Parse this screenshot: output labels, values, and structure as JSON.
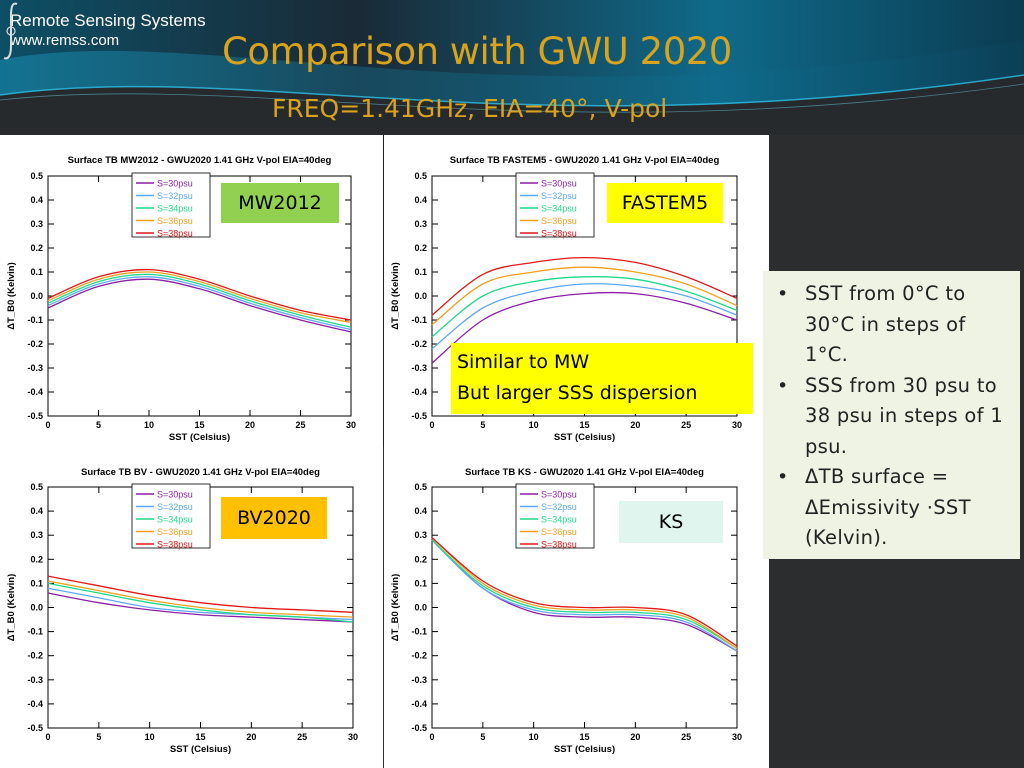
{
  "brand": {
    "name": "Remote Sensing Systems",
    "url": "www.remss.com"
  },
  "slide": {
    "title": "Comparison with GWU 2020",
    "subtitle": "FREQ=1.41GHz, EIA=40°, V-pol"
  },
  "colors": {
    "title": "#d9a31c",
    "background": "#2b2d2f",
    "notes_box": "#eef3e4",
    "callout": "#ffff00"
  },
  "legend": [
    {
      "label": "S=30psu",
      "color": "#8b1fa6"
    },
    {
      "label": "S=32psu",
      "color": "#5fa8f0"
    },
    {
      "label": "S=34psu",
      "color": "#1fd98a"
    },
    {
      "label": "S=36psu",
      "color": "#f0a020"
    },
    {
      "label": "S=38psu",
      "color": "#e01818"
    }
  ],
  "labels": {
    "mw": "MW2012",
    "fastem": "FASTEM5",
    "bv": "BV2020",
    "ks": "KS"
  },
  "callout": {
    "line1": "Similar to MW",
    "line2": "But larger SSS dispersion"
  },
  "notes": [
    "SST from 0°C to 30°C in steps of 1°C.",
    "SSS from 30 psu to 38 psu in steps of 1 psu.",
    "ΔTB surface = ΔEmissivity ·SST (Kelvin)."
  ],
  "chart_data": [
    {
      "type": "line",
      "title": "Surface TB  MW2012 - GWU2020 1.41 GHz V-pol EIA=40deg",
      "xlabel": "SST (Celsius)",
      "ylabel": "ΔT_B0 (Kelvin)",
      "xlim": [
        0,
        30
      ],
      "ylim": [
        -0.5,
        0.5
      ],
      "xticks": [
        0,
        5,
        10,
        15,
        20,
        25,
        30
      ],
      "yticks": [
        -0.5,
        -0.4,
        -0.3,
        -0.2,
        -0.1,
        0.0,
        0.1,
        0.2,
        0.3,
        0.4,
        0.5
      ],
      "x": [
        0,
        5,
        10,
        15,
        20,
        25,
        30
      ],
      "series": [
        {
          "name": "S=30psu",
          "values": [
            -0.05,
            0.04,
            0.07,
            0.03,
            -0.04,
            -0.1,
            -0.15
          ]
        },
        {
          "name": "S=32psu",
          "values": [
            -0.04,
            0.05,
            0.08,
            0.04,
            -0.03,
            -0.09,
            -0.14
          ]
        },
        {
          "name": "S=34psu",
          "values": [
            -0.03,
            0.06,
            0.09,
            0.05,
            -0.02,
            -0.08,
            -0.13
          ]
        },
        {
          "name": "S=36psu",
          "values": [
            -0.02,
            0.07,
            0.1,
            0.06,
            -0.01,
            -0.07,
            -0.11
          ]
        },
        {
          "name": "S=38psu",
          "values": [
            -0.01,
            0.08,
            0.11,
            0.07,
            0.0,
            -0.06,
            -0.1
          ]
        }
      ]
    },
    {
      "type": "line",
      "title": "Surface TB  FASTEM5 - GWU2020 1.41 GHz V-pol EIA=40deg",
      "xlabel": "SST (Celsius)",
      "ylabel": "ΔT_B0 (Kelvin)",
      "xlim": [
        0,
        30
      ],
      "ylim": [
        -0.5,
        0.5
      ],
      "xticks": [
        0,
        5,
        10,
        15,
        20,
        25,
        30
      ],
      "yticks": [
        -0.5,
        -0.4,
        -0.3,
        -0.2,
        -0.1,
        0.0,
        0.1,
        0.2,
        0.3,
        0.4,
        0.5
      ],
      "x": [
        0,
        5,
        10,
        15,
        20,
        25,
        30
      ],
      "series": [
        {
          "name": "S=30psu",
          "values": [
            -0.28,
            -0.1,
            -0.02,
            0.01,
            0.01,
            -0.03,
            -0.1
          ]
        },
        {
          "name": "S=32psu",
          "values": [
            -0.22,
            -0.05,
            0.02,
            0.05,
            0.04,
            0.0,
            -0.08
          ]
        },
        {
          "name": "S=34psu",
          "values": [
            -0.17,
            0.0,
            0.06,
            0.08,
            0.07,
            0.02,
            -0.06
          ]
        },
        {
          "name": "S=36psu",
          "values": [
            -0.12,
            0.05,
            0.1,
            0.12,
            0.1,
            0.05,
            -0.04
          ]
        },
        {
          "name": "S=38psu",
          "values": [
            -0.08,
            0.09,
            0.14,
            0.16,
            0.14,
            0.08,
            -0.01
          ]
        }
      ]
    },
    {
      "type": "line",
      "title": "Surface TB  BV - GWU2020 1.41 GHz V-pol EIA=40deg",
      "xlabel": "SST (Celsius)",
      "ylabel": "ΔT_B0 (Kelvin)",
      "xlim": [
        0,
        30
      ],
      "ylim": [
        -0.5,
        0.5
      ],
      "xticks": [
        0,
        5,
        10,
        15,
        20,
        25,
        30
      ],
      "yticks": [
        -0.5,
        -0.4,
        -0.3,
        -0.2,
        -0.1,
        0.0,
        0.1,
        0.2,
        0.3,
        0.4,
        0.5
      ],
      "x": [
        0,
        5,
        10,
        15,
        20,
        25,
        30
      ],
      "series": [
        {
          "name": "S=30psu",
          "values": [
            0.06,
            0.02,
            -0.01,
            -0.03,
            -0.04,
            -0.05,
            -0.06
          ]
        },
        {
          "name": "S=32psu",
          "values": [
            0.08,
            0.04,
            0.0,
            -0.02,
            -0.03,
            -0.04,
            -0.05
          ]
        },
        {
          "name": "S=34psu",
          "values": [
            0.1,
            0.06,
            0.02,
            -0.01,
            -0.03,
            -0.04,
            -0.06
          ]
        },
        {
          "name": "S=36psu",
          "values": [
            0.11,
            0.07,
            0.03,
            0.0,
            -0.02,
            -0.03,
            -0.04
          ]
        },
        {
          "name": "S=38psu",
          "values": [
            0.13,
            0.09,
            0.05,
            0.02,
            0.0,
            -0.01,
            -0.02
          ]
        }
      ]
    },
    {
      "type": "line",
      "title": "Surface TB  KS - GWU2020 1.41 GHz V-pol EIA=40deg",
      "xlabel": "SST (Celsius)",
      "ylabel": "ΔT_B0 (Kelvin)",
      "xlim": [
        0,
        30
      ],
      "ylim": [
        -0.5,
        0.5
      ],
      "xticks": [
        0,
        5,
        10,
        15,
        20,
        25,
        30
      ],
      "yticks": [
        -0.5,
        -0.4,
        -0.3,
        -0.2,
        -0.1,
        0.0,
        0.1,
        0.2,
        0.3,
        0.4,
        0.5
      ],
      "x": [
        0,
        5,
        10,
        15,
        20,
        25,
        30
      ],
      "series": [
        {
          "name": "S=30psu",
          "values": [
            0.28,
            0.08,
            -0.02,
            -0.04,
            -0.04,
            -0.07,
            -0.18
          ]
        },
        {
          "name": "S=32psu",
          "values": [
            0.28,
            0.08,
            -0.01,
            -0.03,
            -0.03,
            -0.06,
            -0.18
          ]
        },
        {
          "name": "S=34psu",
          "values": [
            0.28,
            0.09,
            0.0,
            -0.02,
            -0.02,
            -0.05,
            -0.17
          ]
        },
        {
          "name": "S=36psu",
          "values": [
            0.29,
            0.1,
            0.01,
            -0.01,
            -0.01,
            -0.04,
            -0.17
          ]
        },
        {
          "name": "S=38psu",
          "values": [
            0.29,
            0.11,
            0.02,
            0.0,
            0.0,
            -0.03,
            -0.16
          ]
        }
      ]
    }
  ]
}
